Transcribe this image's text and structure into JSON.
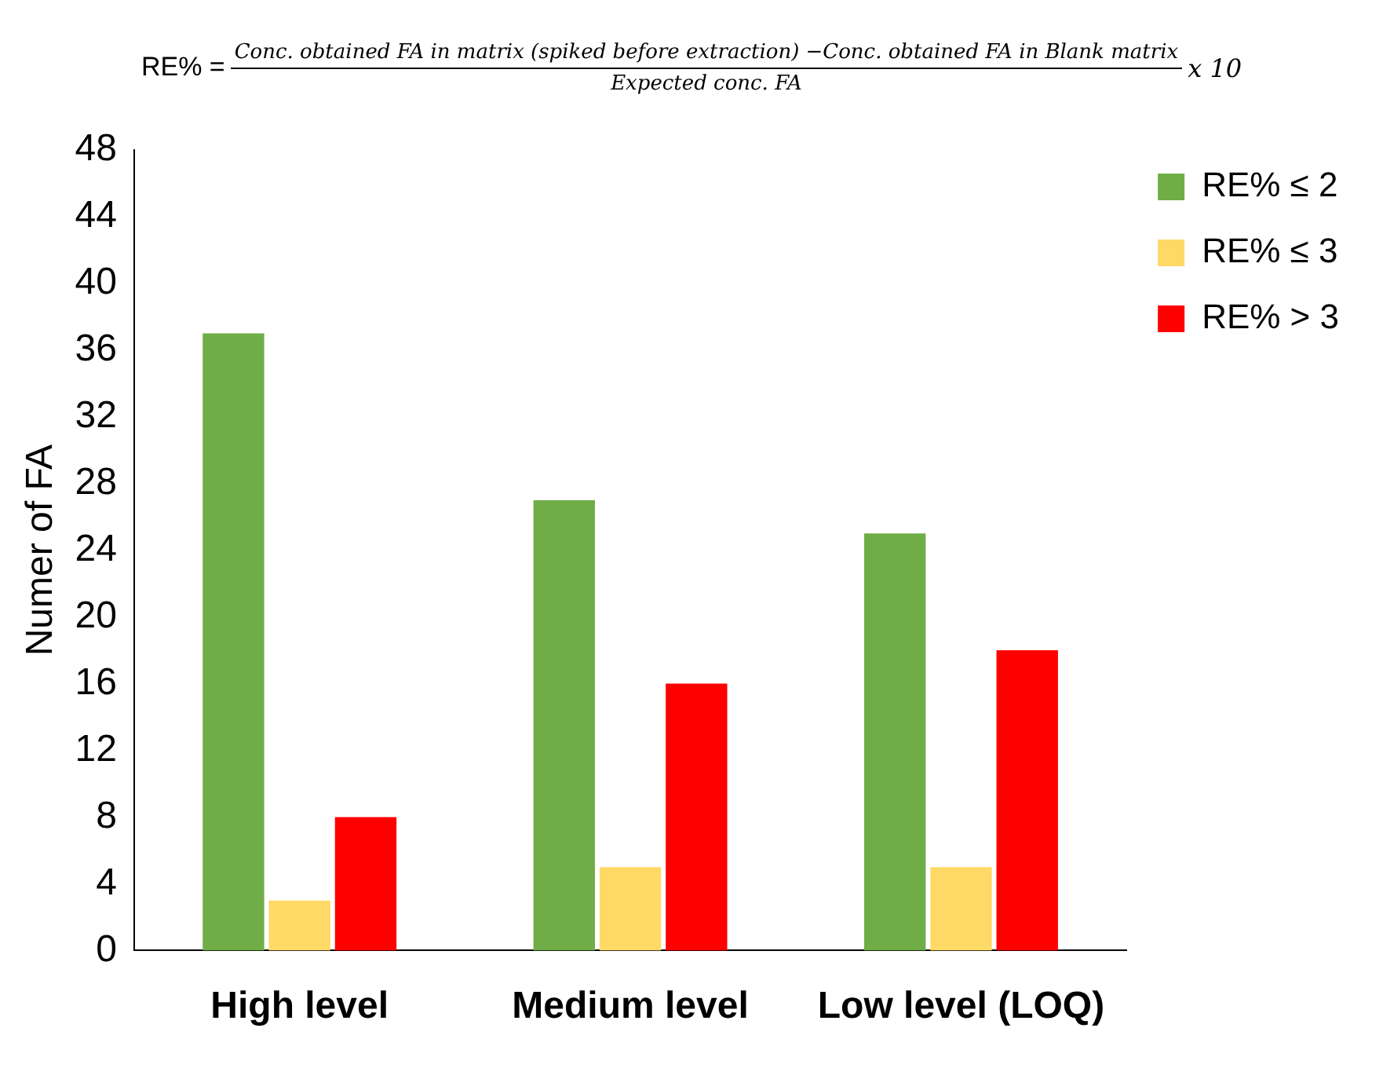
{
  "chart_data": {
    "type": "bar",
    "annotations": [
      "RE% =",
      "Conc. obtained FA in matrix (spiked before extraction) −Conc. obtained FA in Blank matrix",
      "Expected conc. FA",
      "x 10"
    ],
    "ylabel": "Numer of FA",
    "categories": [
      "High level",
      "Medium level",
      "Low level (LOQ)"
    ],
    "series": [
      {
        "name": "RE% ≤ 2",
        "color": "#70ad47",
        "values": [
          37,
          27,
          25
        ]
      },
      {
        "name": "RE% ≤ 3",
        "color": "#ffd966",
        "values": [
          3,
          5,
          5
        ]
      },
      {
        "name": "RE% > 3",
        "color": "#ff0000",
        "values": [
          8,
          16,
          18
        ]
      }
    ],
    "ylim": [
      0,
      48
    ],
    "yticks": [
      0,
      4,
      8,
      12,
      16,
      20,
      24,
      28,
      32,
      36,
      40,
      44,
      48
    ],
    "grid": false,
    "legend": "right"
  }
}
